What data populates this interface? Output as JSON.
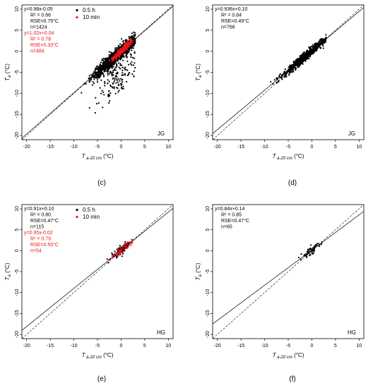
{
  "chart_data": [
    {
      "type": "scatter",
      "panel_label": "(c)",
      "site": "JG",
      "xlabel": "T a-20 cm (°C)",
      "ylabel": "T a (°C)",
      "xlim": [
        -21,
        11
      ],
      "ylim": [
        -21,
        11
      ],
      "xticks": [
        -20,
        -15,
        -10,
        -5,
        0,
        5,
        10
      ],
      "yticks": [
        -20,
        -15,
        -10,
        -5,
        0,
        5,
        10
      ],
      "grid": false,
      "legend": {
        "position": "top-center"
      },
      "reference_line": {
        "slope": 1,
        "intercept": 0,
        "style": "dashed"
      },
      "series": [
        {
          "name": "0.5 h",
          "color": "#000000",
          "fit": {
            "slope": 0.98,
            "intercept": -0.05
          },
          "stats": [
            "y=0.98x-0.05",
            "R² = 0.66",
            "RSE=0.75°C",
            "n=1424"
          ],
          "n": 1424,
          "cloud": {
            "x_center": -1.0,
            "x_sd": 2.3,
            "x_min": -12,
            "x_max": 3,
            "slope": 0.98,
            "intercept": -0.05,
            "resid_sd": 0.75,
            "outliers_down": true
          }
        },
        {
          "name": "10 min",
          "color": "#e8141a",
          "fit": {
            "slope": 1.02,
            "intercept": 0.04
          },
          "stats": [
            "y=1.02x+0.04",
            "R² = 0.78",
            "RSE=0.33°C",
            "n=484"
          ],
          "n": 484,
          "cloud": {
            "x_center": 0.2,
            "x_sd": 1.0,
            "x_min": -3,
            "x_max": 2.5,
            "slope": 1.02,
            "intercept": 0.04,
            "resid_sd": 0.33,
            "outliers_down": false
          }
        }
      ]
    },
    {
      "type": "scatter",
      "panel_label": "(d)",
      "site": "JG",
      "xlabel": "T a-20 cm (°C)",
      "ylabel": "T a (°C)",
      "xlim": [
        -21,
        11
      ],
      "ylim": [
        -21,
        11
      ],
      "xticks": [
        -20,
        -15,
        -10,
        -5,
        0,
        5,
        10
      ],
      "yticks": [
        -20,
        -15,
        -10,
        -5,
        0,
        5,
        10
      ],
      "grid": false,
      "reference_line": {
        "slope": 1,
        "intercept": 0,
        "style": "dashed"
      },
      "series": [
        {
          "name": "",
          "color": "#000000",
          "fit": {
            "slope": 0.936,
            "intercept": 0.1
          },
          "stats": [
            "y=0.936x+0.10",
            "R² = 0.84",
            "RSE=0.49°C",
            "n=766"
          ],
          "n": 766,
          "cloud": {
            "x_center": -1.5,
            "x_sd": 2.4,
            "x_min": -11,
            "x_max": 3,
            "slope": 0.936,
            "intercept": 0.1,
            "resid_sd": 0.49,
            "outliers_down": false
          }
        }
      ]
    },
    {
      "type": "scatter",
      "panel_label": "(e)",
      "site": "HG",
      "xlabel": "T a-20 cm (°C)",
      "ylabel": "T a (°C)",
      "xlim": [
        -21,
        11
      ],
      "ylim": [
        -21,
        11
      ],
      "xticks": [
        -20,
        -15,
        -10,
        -5,
        0,
        5,
        10
      ],
      "yticks": [
        -20,
        -15,
        -10,
        -5,
        0,
        5,
        10
      ],
      "grid": false,
      "legend": {
        "position": "top-center"
      },
      "reference_line": {
        "slope": 1,
        "intercept": 0,
        "style": "dashed"
      },
      "series": [
        {
          "name": "0.5 h",
          "color": "#000000",
          "fit": {
            "slope": 0.91,
            "intercept": 0.1
          },
          "stats": [
            "y=0.91x+0.10",
            "R² = 0.80",
            "RSE=0.47°C",
            "n=115"
          ],
          "n": 115,
          "cloud": {
            "x_center": 0.0,
            "x_sd": 1.0,
            "x_min": -3,
            "x_max": 2.5,
            "slope": 0.91,
            "intercept": 0.1,
            "resid_sd": 0.47,
            "outliers_down": false
          }
        },
        {
          "name": "10 min",
          "color": "#e8141a",
          "fit": {
            "slope": 0.95,
            "intercept": -0.02
          },
          "stats": [
            "y=0.95x-0.02",
            "R² = 0.79",
            "RSE=0.50°C",
            "n=54"
          ],
          "n": 54,
          "cloud": {
            "x_center": 0.3,
            "x_sd": 0.9,
            "x_min": -2.5,
            "x_max": 2.5,
            "slope": 0.95,
            "intercept": -0.02,
            "resid_sd": 0.5,
            "outliers_down": false
          }
        }
      ]
    },
    {
      "type": "scatter",
      "panel_label": "(f)",
      "site": "HG",
      "xlabel": "T a-20 cm (°C)",
      "ylabel": "T a (°C)",
      "xlim": [
        -21,
        11
      ],
      "ylim": [
        -21,
        11
      ],
      "xticks": [
        -20,
        -15,
        -10,
        -5,
        0,
        5,
        10
      ],
      "yticks": [
        -20,
        -15,
        -10,
        -5,
        0,
        5,
        10
      ],
      "grid": false,
      "reference_line": {
        "slope": 1,
        "intercept": 0,
        "style": "dashed"
      },
      "series": [
        {
          "name": "",
          "color": "#000000",
          "fit": {
            "slope": 0.84,
            "intercept": 0.14
          },
          "stats": [
            "y=0.84x+0.14",
            "R² = 0.85",
            "RSE=0.47°C",
            "n=65"
          ],
          "n": 65,
          "cloud": {
            "x_center": 0.0,
            "x_sd": 1.0,
            "x_min": -3,
            "x_max": 2.5,
            "slope": 0.84,
            "intercept": 0.14,
            "resid_sd": 0.47,
            "outliers_down": false
          }
        }
      ]
    }
  ]
}
